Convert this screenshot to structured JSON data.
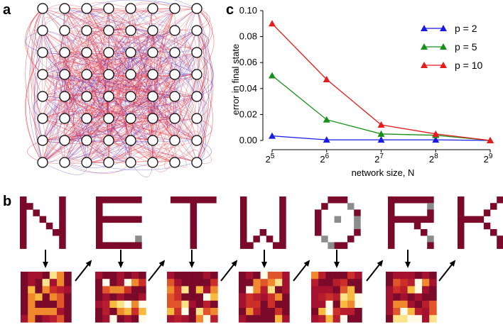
{
  "panels": {
    "a": "a",
    "b": "b",
    "c": "c"
  },
  "network": {
    "rows": 8,
    "cols": 8,
    "edge_colors": [
      "#e8202a",
      "#3a2fd0"
    ]
  },
  "letters": {
    "word": [
      "N",
      "E",
      "T",
      "W",
      "O",
      "R",
      "K"
    ],
    "color_on": "#7b0a2a",
    "color_noise": "#8c8c8c"
  },
  "chart_data": {
    "type": "line",
    "x": [
      5,
      6,
      7,
      8,
      9
    ],
    "x_tick_base": "2",
    "x_tick_exponents": [
      "5",
      "6",
      "7",
      "8",
      "9"
    ],
    "xlabel": "network size, N",
    "ylabel": "error in final state",
    "ylim": [
      0,
      0.1
    ],
    "y_ticks": [
      "0.00",
      "0.02",
      "0.04",
      "0.06",
      "0.08",
      "0.10"
    ],
    "y_tick_values": [
      0,
      0.02,
      0.04,
      0.06,
      0.08,
      0.1
    ],
    "legend_position": "top-right",
    "grid": false,
    "series": [
      {
        "name": "p = 2",
        "color": "#1a1ae6",
        "values": [
          0.0035,
          0.0005,
          0.0005,
          0.0005,
          0.0
        ]
      },
      {
        "name": "p = 5",
        "color": "#179017",
        "values": [
          0.05,
          0.016,
          0.005,
          0.004,
          0.0
        ]
      },
      {
        "name": "p = 10",
        "color": "#e81a1a",
        "values": [
          0.09,
          0.047,
          0.012,
          0.005,
          0.0
        ]
      }
    ]
  }
}
